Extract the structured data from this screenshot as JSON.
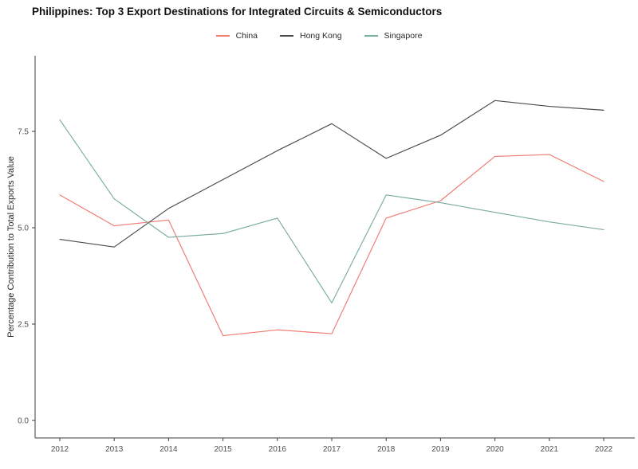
{
  "header": {
    "title": "Philippines: Top 3 Export Destinations for Integrated Circuits & Semiconductors"
  },
  "chart_data": {
    "type": "line",
    "title": "Philippines: Top 3 Export Destinations for Integrated Circuits & Semiconductors",
    "xlabel": "",
    "ylabel": "Percentage Contribution to Total Exports Value",
    "x": [
      "2012",
      "2013",
      "2014",
      "2015",
      "2016",
      "2017",
      "2018",
      "2019",
      "2020",
      "2021",
      "2022"
    ],
    "series": [
      {
        "name": "China",
        "color": "#ef7b72",
        "values": [
          5.85,
          5.05,
          5.2,
          2.2,
          2.35,
          2.25,
          5.25,
          5.7,
          6.85,
          6.9,
          6.2
        ]
      },
      {
        "name": "Hong Kong",
        "color": "#4a4a4a",
        "values": [
          4.7,
          4.5,
          5.5,
          6.25,
          7.0,
          7.7,
          6.8,
          7.4,
          8.3,
          8.15,
          8.05
        ]
      },
      {
        "name": "Singapore",
        "color": "#79aca2",
        "values": [
          7.8,
          5.75,
          4.75,
          4.85,
          5.25,
          3.05,
          5.85,
          5.65,
          5.4,
          5.15,
          4.95
        ]
      }
    ],
    "yticks": [
      0.0,
      2.5,
      5.0,
      7.5
    ],
    "ytick_labels": [
      "0.0",
      "2.5",
      "5.0",
      "7.5"
    ],
    "ylim": [
      0,
      9.45
    ],
    "grid": false,
    "legend_position": "top",
    "axis_color": "#3c3c3c",
    "tick_label_color": "#4d4d4d"
  }
}
